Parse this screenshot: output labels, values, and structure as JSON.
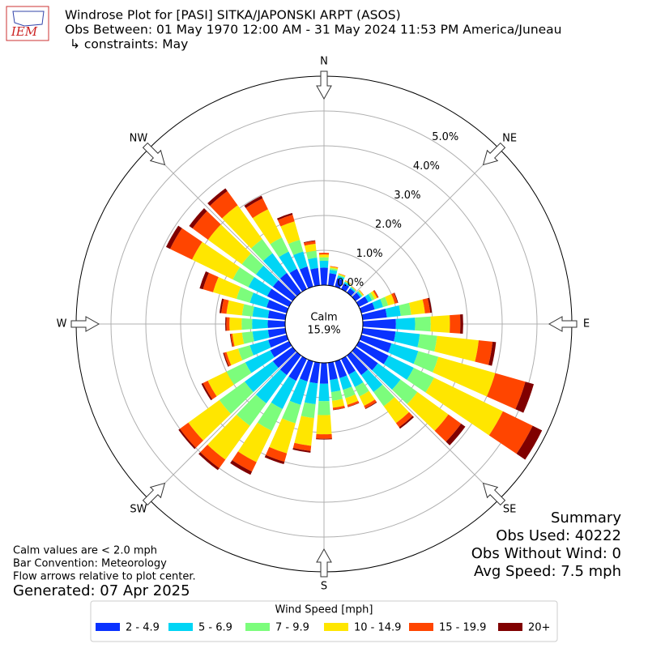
{
  "chart_data": {
    "type": "windrose",
    "logo": "IEM",
    "title": "Windrose Plot for [PASI] SITKA/JAPONSKI ARPT (ASOS)",
    "subtitle": "Obs Between: 01 May 1970 12:00 AM - 31 May 2024 11:53 PM America/Juneau",
    "constraints": "↳ constraints: May",
    "compass_labels": [
      "N",
      "NE",
      "E",
      "SE",
      "S",
      "SW",
      "W",
      "NW"
    ],
    "calm_label": "Calm",
    "calm_value": 15.9,
    "calm_value_label": "15.9%",
    "ylim": [
      0,
      6
    ],
    "yticks": [
      {
        "value": 0,
        "label": "0.0%"
      },
      {
        "value": 1,
        "label": "1.0%"
      },
      {
        "value": 2,
        "label": "2.0%"
      },
      {
        "value": 3,
        "label": "3.0%"
      },
      {
        "value": 4,
        "label": "4.0%"
      },
      {
        "value": 5,
        "label": "5.0%"
      }
    ],
    "grid": true,
    "x": [
      0,
      10,
      20,
      30,
      40,
      50,
      60,
      70,
      80,
      90,
      100,
      110,
      120,
      130,
      140,
      150,
      160,
      170,
      180,
      190,
      200,
      210,
      220,
      230,
      240,
      250,
      260,
      270,
      280,
      290,
      300,
      310,
      320,
      330,
      340,
      350
    ],
    "legend_title": "Wind Speed [mph]",
    "series": [
      {
        "name": "2 - 4.9",
        "color": "#0a32ff",
        "values": [
          0.5,
          0.35,
          0.25,
          0.18,
          0.15,
          0.18,
          0.3,
          0.4,
          0.7,
          0.95,
          0.95,
          0.9,
          0.95,
          0.8,
          0.7,
          0.5,
          0.5,
          0.5,
          0.6,
          0.6,
          0.6,
          0.7,
          0.7,
          0.7,
          0.6,
          0.55,
          0.5,
          0.5,
          0.5,
          0.6,
          0.7,
          0.7,
          0.7,
          0.65,
          0.6,
          0.5
        ]
      },
      {
        "name": "5 - 6.9",
        "color": "#00d5f5",
        "values": [
          0.2,
          0.1,
          0.08,
          0.05,
          0.04,
          0.05,
          0.12,
          0.25,
          0.4,
          0.55,
          0.7,
          0.8,
          0.8,
          0.8,
          0.6,
          0.4,
          0.35,
          0.35,
          0.5,
          0.6,
          0.7,
          0.9,
          1.0,
          1.0,
          0.8,
          0.55,
          0.45,
          0.45,
          0.45,
          0.5,
          0.6,
          0.6,
          0.7,
          0.55,
          0.45,
          0.3
        ]
      },
      {
        "name": "7 - 9.9",
        "color": "#7cfd7c",
        "values": [
          0.1,
          0.05,
          0.03,
          0.02,
          0.02,
          0.03,
          0.08,
          0.15,
          0.3,
          0.45,
          0.5,
          0.6,
          0.65,
          0.6,
          0.5,
          0.3,
          0.25,
          0.25,
          0.4,
          0.4,
          0.55,
          0.7,
          0.8,
          0.9,
          0.6,
          0.35,
          0.3,
          0.3,
          0.3,
          0.4,
          0.5,
          0.5,
          0.5,
          0.45,
          0.35,
          0.2
        ]
      },
      {
        "name": "10 - 14.9",
        "color": "#ffe600",
        "values": [
          0.08,
          0.04,
          0.03,
          0.02,
          0.01,
          0.03,
          0.08,
          0.2,
          0.4,
          0.55,
          1.2,
          1.7,
          2.2,
          1.1,
          0.6,
          0.3,
          0.2,
          0.2,
          0.55,
          0.8,
          0.9,
          1.0,
          1.2,
          1.1,
          0.6,
          0.35,
          0.28,
          0.35,
          0.45,
          0.7,
          1.3,
          1.2,
          1.2,
          0.9,
          0.55,
          0.2
        ]
      },
      {
        "name": "15 - 19.9",
        "color": "#ff4500",
        "values": [
          0.05,
          0.02,
          0.01,
          0.01,
          0.01,
          0.01,
          0.04,
          0.08,
          0.15,
          0.3,
          0.4,
          0.9,
          0.95,
          0.45,
          0.15,
          0.08,
          0.06,
          0.06,
          0.13,
          0.15,
          0.25,
          0.3,
          0.3,
          0.3,
          0.15,
          0.07,
          0.05,
          0.09,
          0.15,
          0.3,
          0.7,
          0.55,
          0.5,
          0.35,
          0.2,
          0.08
        ]
      },
      {
        "name": "20+",
        "color": "#800000",
        "values": [
          0,
          0,
          0,
          0,
          0,
          0,
          0.01,
          0.02,
          0.05,
          0.08,
          0.1,
          0.25,
          0.3,
          0.15,
          0.05,
          0.02,
          0.01,
          0.01,
          0.02,
          0.05,
          0.07,
          0.1,
          0.07,
          0.05,
          0.05,
          0.03,
          0.02,
          0.03,
          0.05,
          0.1,
          0.13,
          0.12,
          0.1,
          0.08,
          0.05,
          0.02
        ]
      }
    ],
    "notes": [
      "Calm values are < 2.0 mph",
      "Bar Convention: Meteorology",
      "Flow arrows relative to plot center."
    ],
    "generated": "Generated: 07 Apr 2025",
    "summary": [
      "Summary",
      "Obs Used: 40222",
      "Obs Without Wind: 0",
      "Avg Speed: 7.5 mph"
    ]
  }
}
